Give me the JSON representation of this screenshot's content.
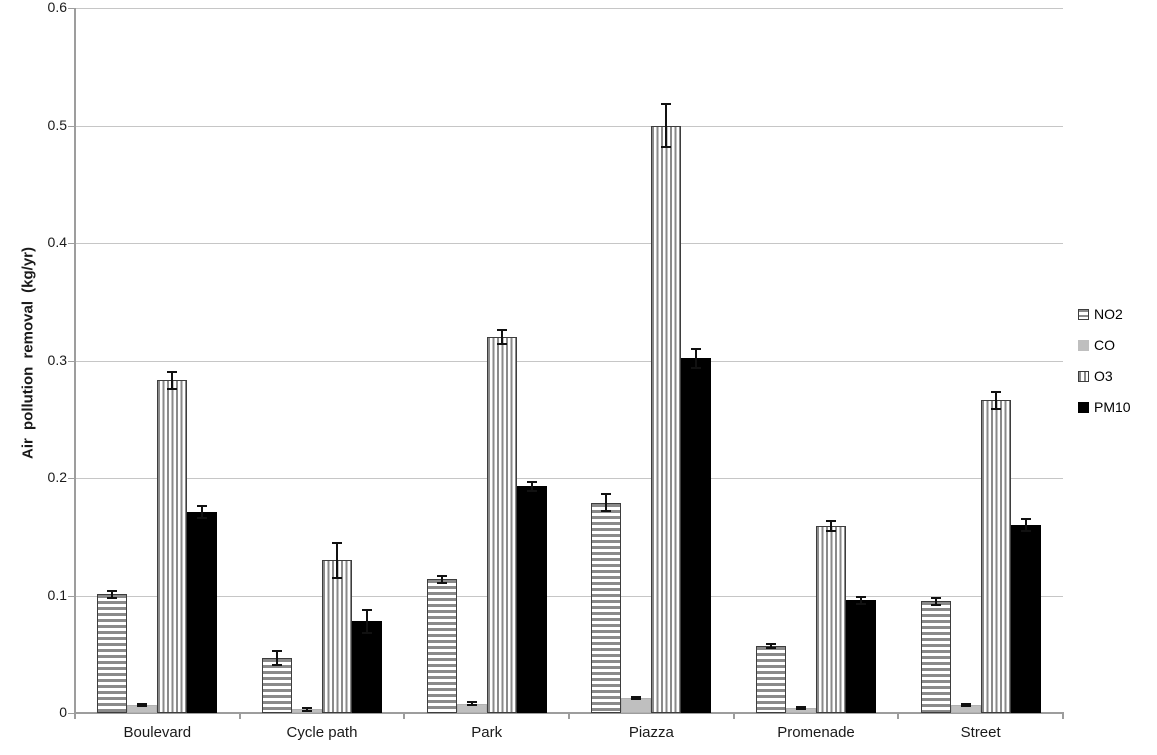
{
  "chart_data": {
    "type": "bar",
    "title": "",
    "xlabel": "",
    "ylabel": "Air pollution removal (kg/yr)",
    "ylim": [
      0,
      0.6
    ],
    "ytick_step": 0.1,
    "yticks": [
      "0",
      "0.1",
      "0.2",
      "0.3",
      "0.4",
      "0.5",
      "0.6"
    ],
    "grid": true,
    "legend_position": "right",
    "error_bars": true,
    "categories": [
      "Boulevard",
      "Cycle path",
      "Park",
      "Piazza",
      "Promenade",
      "Street"
    ],
    "series": [
      {
        "name": "NO2",
        "pattern": "horizontal-stripes",
        "values": [
          0.101,
          0.047,
          0.114,
          0.179,
          0.057,
          0.095
        ],
        "errors": [
          0.003,
          0.006,
          0.003,
          0.007,
          0.002,
          0.003
        ]
      },
      {
        "name": "CO",
        "pattern": "solid-lightgray",
        "values": [
          0.007,
          0.003,
          0.008,
          0.013,
          0.004,
          0.007
        ],
        "errors": [
          0.001,
          0.001,
          0.001,
          0.001,
          0.001,
          0.001
        ]
      },
      {
        "name": "O3",
        "pattern": "vertical-stripes",
        "values": [
          0.283,
          0.13,
          0.32,
          0.5,
          0.159,
          0.266
        ],
        "errors": [
          0.007,
          0.015,
          0.006,
          0.018,
          0.004,
          0.007
        ]
      },
      {
        "name": "PM10",
        "pattern": "solid-black",
        "values": [
          0.171,
          0.078,
          0.193,
          0.302,
          0.096,
          0.16
        ],
        "errors": [
          0.005,
          0.01,
          0.004,
          0.008,
          0.003,
          0.005
        ]
      }
    ],
    "colors": {
      "stripe_gray": "#8a8a8a",
      "bar_border": "#3d3d3d",
      "co_gray": "#bfbfbf",
      "pm10_black": "#000000",
      "gridline": "#c6c6c6",
      "axis": "#9d9d9d",
      "text": "#1a1a1a"
    }
  }
}
